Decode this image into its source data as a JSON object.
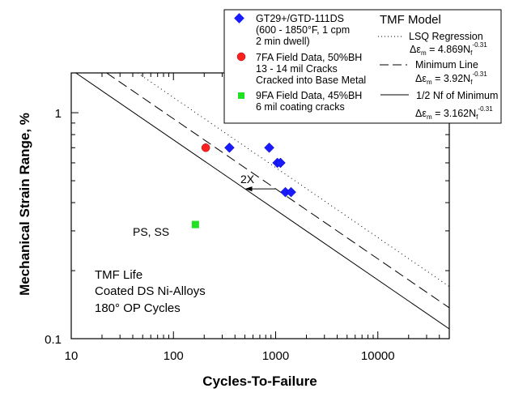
{
  "chart_data": {
    "type": "scatter",
    "title": "",
    "xlabel": "Cycles-To-Failure",
    "ylabel": "Mechanical Strain Range, %",
    "xscale": "log",
    "yscale": "log",
    "xlim": [
      10,
      50000
    ],
    "ylim": [
      0.1,
      1.5
    ],
    "grid": false,
    "x_ticks": [
      10,
      100,
      1000,
      10000
    ],
    "x_tick_labels": [
      "10",
      "100",
      "1000",
      "10000"
    ],
    "y_ticks": [
      0.1,
      1
    ],
    "y_tick_labels": [
      "0.1",
      "1"
    ],
    "legend_position": "top-right",
    "series": [
      {
        "name": "GT29+/GTD-111DS (600 - 1850°F, 1 cpm 2 min dwell)",
        "legend_lines": [
          "GT29+/GTD-111DS",
          "(600 - 1850°F, 1 cpm",
          "2 min dwell)"
        ],
        "marker": "diamond",
        "color": "#1a1aff",
        "points": [
          {
            "x": 353,
            "y": 0.7
          },
          {
            "x": 865,
            "y": 0.7
          },
          {
            "x": 1040,
            "y": 0.6
          },
          {
            "x": 1115,
            "y": 0.6
          },
          {
            "x": 1245,
            "y": 0.445
          },
          {
            "x": 1415,
            "y": 0.445
          }
        ]
      },
      {
        "name": "7FA Field Data, 50%BH 13 - 14 mil Cracks Cracked into Base Metal",
        "legend_lines": [
          "7FA Field Data, 50%BH",
          "13 - 14 mil Cracks",
          "Cracked into Base Metal"
        ],
        "marker": "circle",
        "color": "#ff2020",
        "points": [
          {
            "x": 207,
            "y": 0.7
          }
        ]
      },
      {
        "name": "9FA Field Data, 45%BH 6 mil coating cracks",
        "legend_lines": [
          "9FA Field Data, 45%BH",
          "6 mil coating cracks"
        ],
        "marker": "square",
        "color": "#22e022",
        "points": [
          {
            "x": 164,
            "y": 0.32
          }
        ]
      }
    ],
    "model_lines": {
      "title": "TMF Model",
      "lines": [
        {
          "name": "LSQ Regression",
          "style": "dotted",
          "coefficient": 4.869,
          "exponent": -0.31,
          "equation": "Δε_m = 4.869N_f^-0.31",
          "eq_prefix": "Δε",
          "eq_sub": "m",
          "eq_mid": " = 4.869N",
          "eq_sub2": "f",
          "eq_sup": "-0.31"
        },
        {
          "name": "Minimum Line",
          "style": "dashed",
          "coefficient": 3.92,
          "exponent": -0.31,
          "equation": "Δε_m = 3.92N_f^-0.31",
          "eq_prefix": "Δε",
          "eq_sub": "m",
          "eq_mid": " = 3.92N",
          "eq_sub2": "f",
          "eq_sup": "-0.31"
        },
        {
          "name": "1/2 Nf of Minimum",
          "style": "solid",
          "coefficient": 3.162,
          "exponent": -0.31,
          "equation": "Δε_m = 3.162N_f^-0.31",
          "eq_prefix": "Δε",
          "eq_sub": "m",
          "eq_mid": " = 3.162N",
          "eq_sub2": "f",
          "eq_sup": "-0.31"
        }
      ]
    },
    "annotations": [
      {
        "text": "2X",
        "type": "arrow",
        "from": {
          "x": 1000,
          "y": 0.46
        },
        "to": {
          "x": 500,
          "y": 0.46
        }
      },
      {
        "text": "PS, SS",
        "at": {
          "x": 100,
          "y": 0.3
        }
      },
      {
        "text": "TMF Life",
        "block": "conditions"
      },
      {
        "text": "Coated DS Ni-Alloys",
        "block": "conditions"
      },
      {
        "text": "180° OP Cycles",
        "block": "conditions"
      }
    ]
  }
}
